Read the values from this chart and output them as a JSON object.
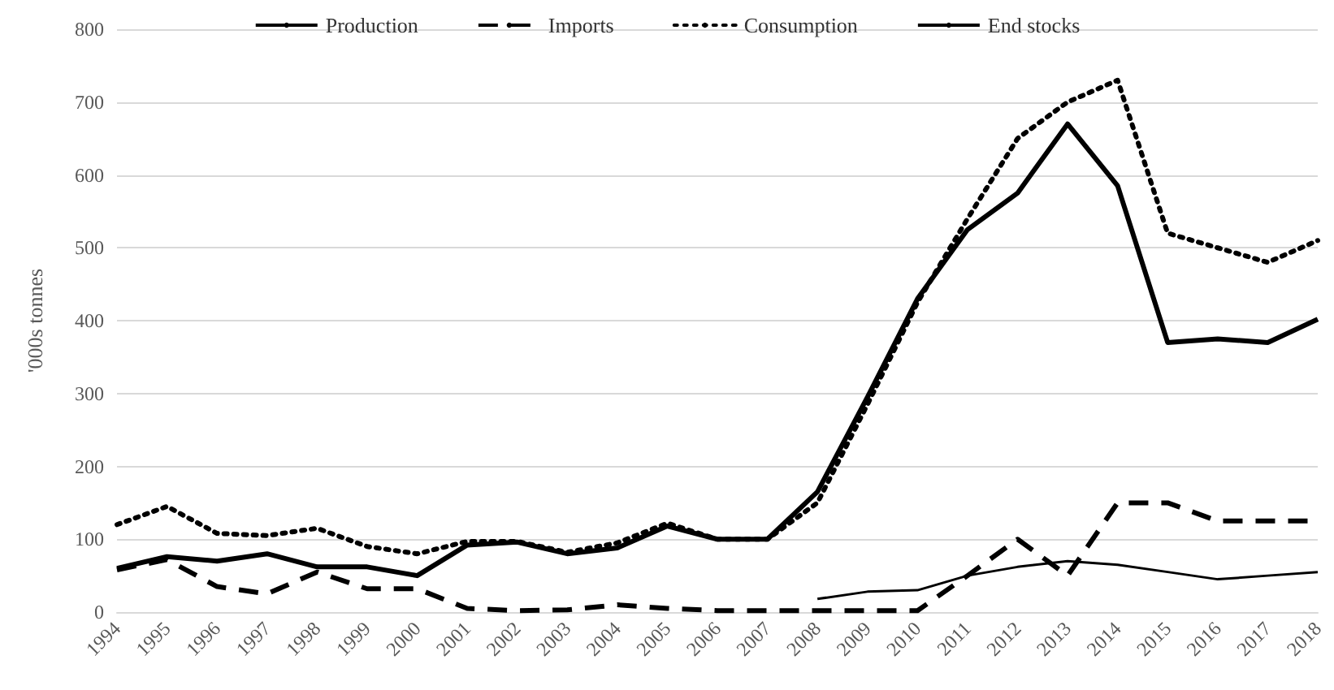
{
  "chart_data": {
    "type": "line",
    "ylabel": "'000s tonnes",
    "categories": [
      "1994",
      "1995",
      "1996",
      "1997",
      "1998",
      "1999",
      "2000",
      "2001",
      "2002",
      "2003",
      "2004",
      "2005",
      "2006",
      "2007",
      "2008",
      "2009",
      "2010",
      "2011",
      "2012",
      "2013",
      "2014",
      "2015",
      "2016",
      "2017",
      "2018"
    ],
    "series": [
      {
        "name": "Production",
        "color": "#000000",
        "line_style": "solid",
        "values": [
          60,
          76,
          70,
          80,
          62,
          62,
          50,
          92,
          96,
          80,
          88,
          118,
          100,
          100,
          165,
          295,
          430,
          525,
          575,
          670,
          585,
          370,
          375,
          370,
          402
        ]
      },
      {
        "name": "Imports",
        "color": "#000000",
        "line_style": "dashed",
        "values": [
          58,
          72,
          35,
          25,
          55,
          32,
          32,
          5,
          2,
          3,
          10,
          5,
          2,
          2,
          2,
          2,
          2,
          50,
          100,
          50,
          150,
          150,
          125,
          125,
          125
        ]
      },
      {
        "name": "Consumption",
        "color": "#000000",
        "line_style": "dotted",
        "values": [
          120,
          145,
          108,
          105,
          115,
          90,
          80,
          97,
          97,
          82,
          95,
          122,
          100,
          100,
          150,
          285,
          425,
          540,
          650,
          700,
          730,
          520,
          500,
          480,
          510
        ]
      },
      {
        "name": "End stocks",
        "color": "#000000",
        "line_style": "solid",
        "values": [
          null,
          null,
          null,
          null,
          null,
          null,
          null,
          null,
          null,
          null,
          null,
          null,
          null,
          null,
          18,
          28,
          30,
          50,
          62,
          70,
          65,
          55,
          45,
          50,
          55
        ]
      }
    ],
    "ylim": [
      0,
      800
    ],
    "yticks": [
      0,
      100,
      200,
      300,
      400,
      500,
      600,
      700,
      800
    ],
    "grid": "y",
    "legend": "top",
    "marker": "none"
  }
}
